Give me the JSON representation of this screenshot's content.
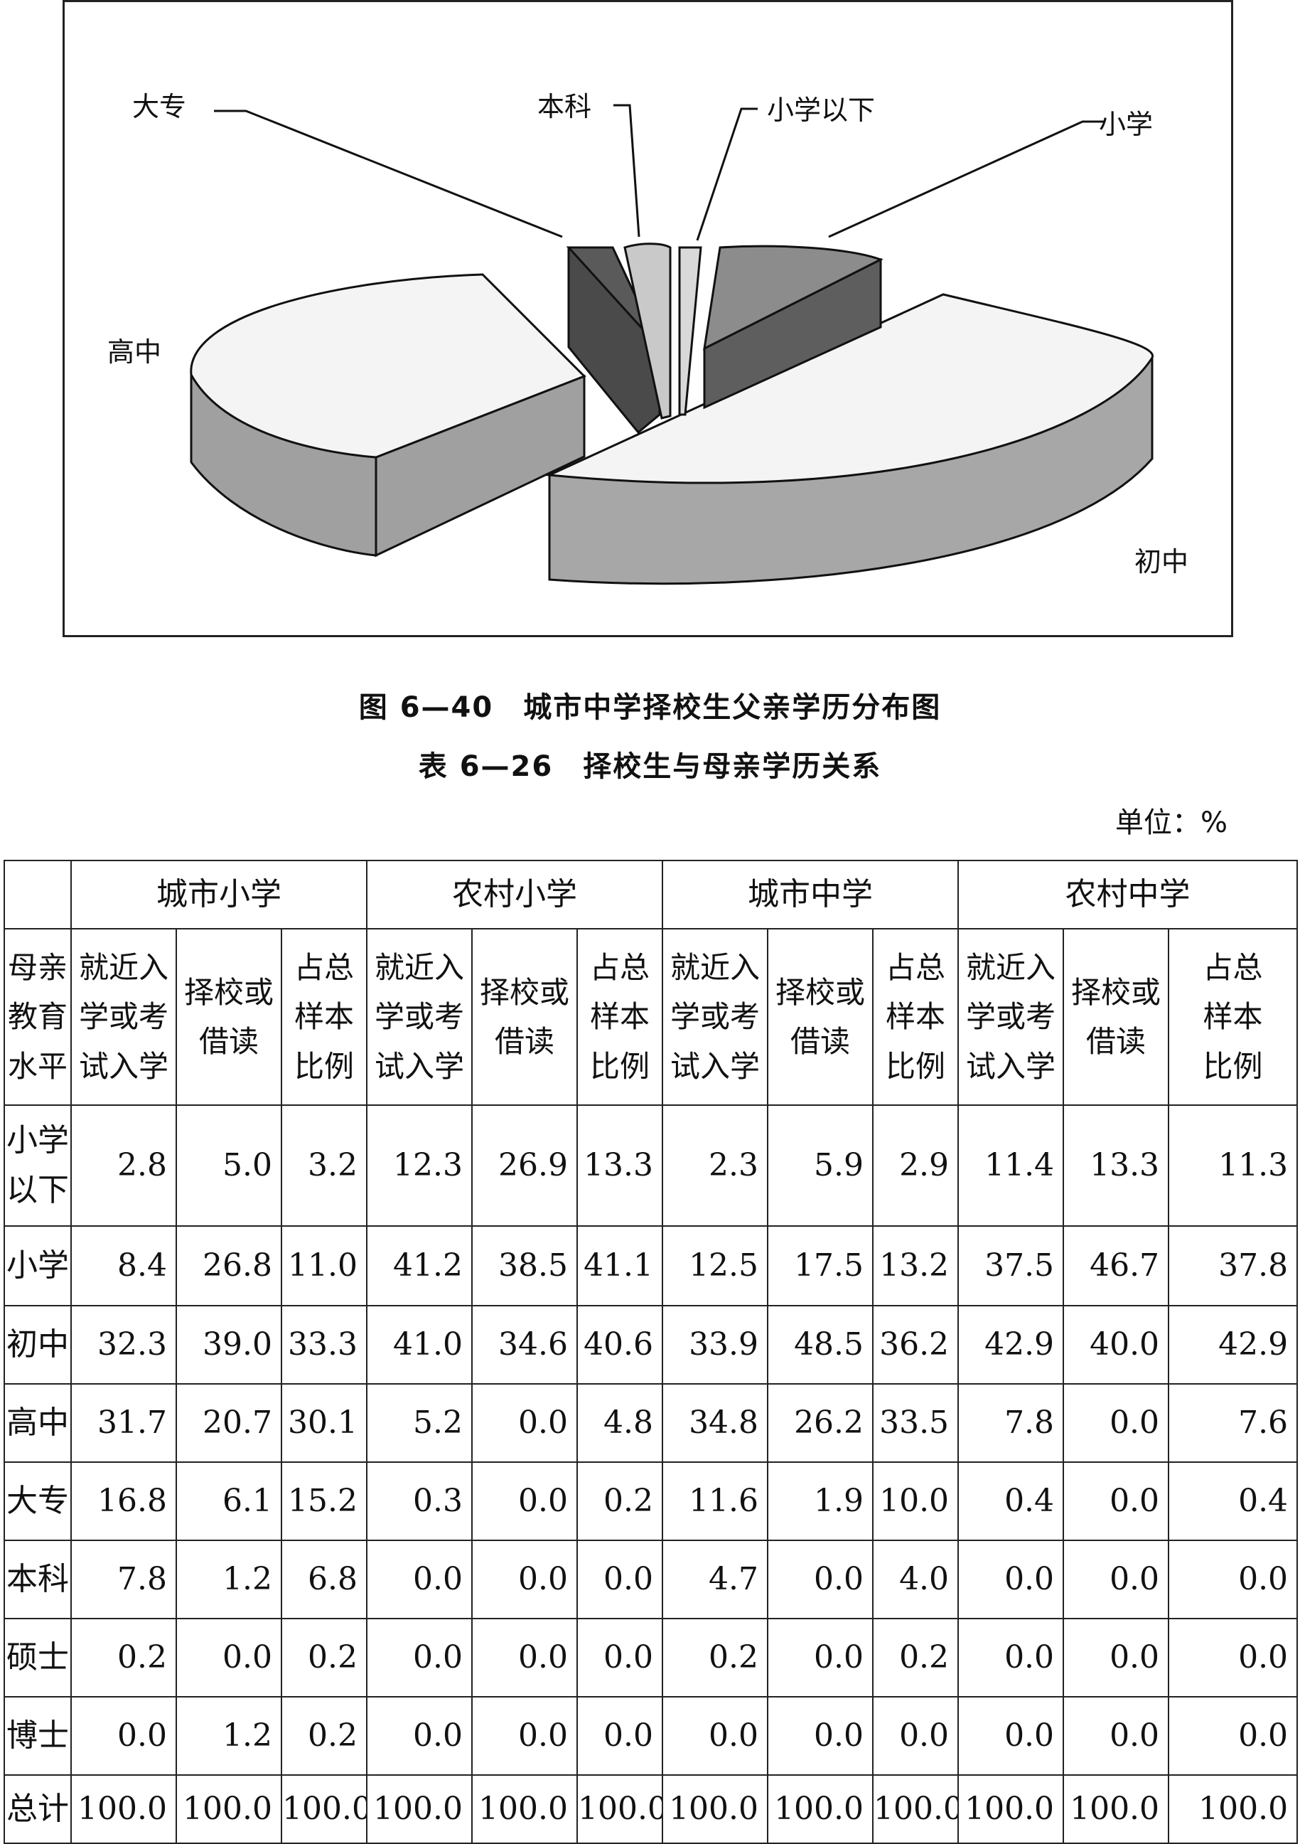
{
  "figure": {
    "caption": "图 6—40　城市中学择校生父亲学历分布图",
    "slice_labels": {
      "dazhuan": "大专",
      "benke": "本科",
      "xiaoxue_yixia": "小学以下",
      "xiaoxue": "小学",
      "gaozhong": "高中",
      "chuzhong": "初中"
    },
    "colors": {
      "chuzhong": "#a7a7a7",
      "gaozhong": "#a0a0a0",
      "dazhuan": "#4a4a4a",
      "benke": "#c9c9c9",
      "xiaoxue_yixia": "#d9d9d9",
      "xiaoxue": "#8c8c8c",
      "top_light": "#f4f4f4"
    }
  },
  "chart_data": {
    "type": "pie",
    "categories": [
      "小学以下",
      "小学",
      "初中",
      "高中",
      "大专",
      "本科"
    ],
    "values": [
      1.0,
      13.0,
      49.0,
      26.0,
      6.0,
      5.0
    ]
  },
  "table": {
    "caption": "表 6—26　择校生与母亲学历关系",
    "unit": "单位：%",
    "groups": [
      "城市小学",
      "农村小学",
      "城市中学",
      "农村中学"
    ],
    "rowhead_lines": [
      "母亲",
      "教育",
      "水平"
    ],
    "sub_headers": [
      [
        "就近入",
        "学或考",
        "试入学"
      ],
      [
        "择校或",
        "借读"
      ],
      [
        "占总",
        "样本",
        "比例"
      ]
    ],
    "rows": [
      {
        "label": [
          "小学",
          "以下"
        ],
        "values": [
          "2.8",
          "5.0",
          "3.2",
          "12.3",
          "26.9",
          "13.3",
          "2.3",
          "5.9",
          "2.9",
          "11.4",
          "13.3",
          "11.3"
        ]
      },
      {
        "label": [
          "小学"
        ],
        "values": [
          "8.4",
          "26.8",
          "11.0",
          "41.2",
          "38.5",
          "41.1",
          "12.5",
          "17.5",
          "13.2",
          "37.5",
          "46.7",
          "37.8"
        ]
      },
      {
        "label": [
          "初中"
        ],
        "values": [
          "32.3",
          "39.0",
          "33.3",
          "41.0",
          "34.6",
          "40.6",
          "33.9",
          "48.5",
          "36.2",
          "42.9",
          "40.0",
          "42.9"
        ]
      },
      {
        "label": [
          "高中"
        ],
        "values": [
          "31.7",
          "20.7",
          "30.1",
          "5.2",
          "0.0",
          "4.8",
          "34.8",
          "26.2",
          "33.5",
          "7.8",
          "0.0",
          "7.6"
        ]
      },
      {
        "label": [
          "大专"
        ],
        "values": [
          "16.8",
          "6.1",
          "15.2",
          "0.3",
          "0.0",
          "0.2",
          "11.6",
          "1.9",
          "10.0",
          "0.4",
          "0.0",
          "0.4"
        ]
      },
      {
        "label": [
          "本科"
        ],
        "values": [
          "7.8",
          "1.2",
          "6.8",
          "0.0",
          "0.0",
          "0.0",
          "4.7",
          "0.0",
          "4.0",
          "0.0",
          "0.0",
          "0.0"
        ]
      },
      {
        "label": [
          "硕士"
        ],
        "values": [
          "0.2",
          "0.0",
          "0.2",
          "0.0",
          "0.0",
          "0.0",
          "0.2",
          "0.0",
          "0.2",
          "0.0",
          "0.0",
          "0.0"
        ]
      },
      {
        "label": [
          "博士"
        ],
        "values": [
          "0.0",
          "1.2",
          "0.2",
          "0.0",
          "0.0",
          "0.0",
          "0.0",
          "0.0",
          "0.0",
          "0.0",
          "0.0",
          "0.0"
        ]
      },
      {
        "label": [
          "总计"
        ],
        "values": [
          "100.0",
          "100.0",
          "100.0",
          "100.0",
          "100.0",
          "100.0",
          "100.0",
          "100.0",
          "100.0",
          "100.0",
          "100.0",
          "100.0"
        ]
      }
    ]
  }
}
